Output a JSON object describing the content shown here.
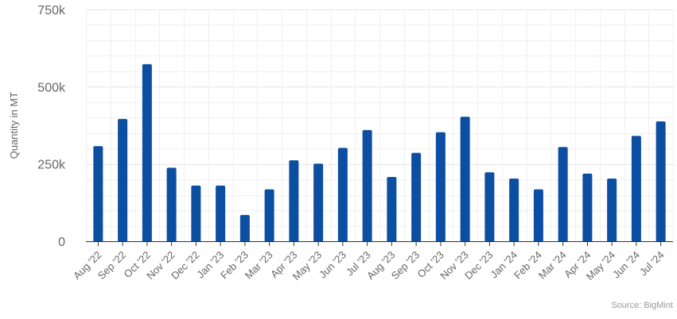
{
  "chart_data": {
    "type": "bar",
    "categories": [
      "Aug '22",
      "Sep '22",
      "Oct '22",
      "Nov '22",
      "Dec '22",
      "Jan '23",
      "Feb '23",
      "Mar '23",
      "Apr '23",
      "May '23",
      "Jun '23",
      "Jul '23",
      "Aug '23",
      "Sep '23",
      "Oct '23",
      "Nov '23",
      "Dec '23",
      "Jan '24",
      "Feb '24",
      "Mar '24",
      "Apr '24",
      "May '24",
      "Jun '24",
      "Jul '24"
    ],
    "values": [
      308000,
      396000,
      573000,
      238000,
      180000,
      180000,
      85000,
      168000,
      262000,
      251000,
      302000,
      360000,
      208000,
      286000,
      353000,
      403000,
      223000,
      203000,
      168000,
      305000,
      219000,
      203000,
      341000,
      388000
    ],
    "ylabel": "Quantity in MT",
    "ylim": [
      0,
      750000
    ],
    "yticks": [
      0,
      250000,
      500000,
      750000
    ],
    "ytick_labels": [
      "0",
      "250k",
      "500k",
      "750k"
    ],
    "grid": true,
    "bar_color": "#0b4ea2",
    "source": "Source: BigMint"
  }
}
